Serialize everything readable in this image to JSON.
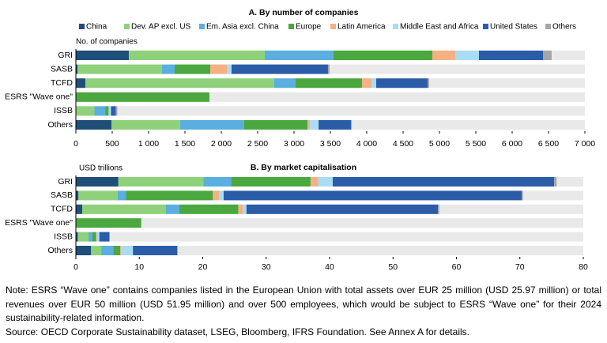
{
  "chart_data": [
    {
      "type": "bar",
      "orientation": "horizontal",
      "stacked": true,
      "title": "A. By number of companies",
      "y_label": "No. of companies",
      "categories": [
        "GRI",
        "SASB",
        "TCFD",
        "ESRS \"Wave one\"",
        "ISSB",
        "Others"
      ],
      "series": [
        {
          "name": "China",
          "color": "#1f4e79",
          "values": [
            728,
            22,
            130,
            0,
            5,
            489
          ]
        },
        {
          "name": "Dev. AP excl. US",
          "color": "#8fd17a",
          "values": [
            1870,
            1163,
            2598,
            0,
            250,
            946
          ]
        },
        {
          "name": "Em. Asia excl. China",
          "color": "#5aaee0",
          "values": [
            945,
            174,
            294,
            0,
            152,
            880
          ]
        },
        {
          "name": "Europe",
          "color": "#4aa83f",
          "values": [
            1359,
            489,
            913,
            1837,
            43,
            870
          ]
        },
        {
          "name": "Latin America",
          "color": "#f4b183",
          "values": [
            315,
            228,
            130,
            0,
            0,
            33
          ]
        },
        {
          "name": "Middle East and Africa",
          "color": "#aadcf5",
          "values": [
            326,
            65,
            65,
            0,
            33,
            120
          ]
        },
        {
          "name": "United States",
          "color": "#2b5ca8",
          "values": [
            881,
            1326,
            707,
            0,
            65,
            446
          ]
        },
        {
          "name": "Others",
          "color": "#a6a6a6",
          "values": [
            119,
            22,
            22,
            0,
            22,
            11
          ]
        }
      ],
      "xlim": [
        0,
        7000
      ],
      "xticks": [
        0,
        500,
        {
          "value": 1000,
          "label": "1 000"
        },
        {
          "value": 1500,
          "label": "1 500"
        },
        {
          "value": 2000,
          "label": "2 000"
        },
        {
          "value": 2500,
          "label": "2 500"
        },
        {
          "value": 3000,
          "label": "3 000"
        },
        {
          "value": 3500,
          "label": "3 500"
        },
        {
          "value": 4000,
          "label": "4 000"
        },
        {
          "value": 4500,
          "label": "4 500"
        },
        {
          "value": 5000,
          "label": "5 000"
        },
        {
          "value": 5500,
          "label": "5 500"
        },
        {
          "value": 6000,
          "label": "6 000"
        },
        {
          "value": 6500,
          "label": "6 500"
        },
        {
          "value": 7000,
          "label": "7 000"
        }
      ],
      "legend": "top"
    },
    {
      "type": "bar",
      "orientation": "horizontal",
      "stacked": true,
      "title": "B. By market capitalisation",
      "y_label": "USD trillions",
      "categories": [
        "GRI",
        "SASB",
        "TCFD",
        "ESRS \"Wave one\"",
        "ISSB",
        "Others"
      ],
      "series": [
        {
          "color": "#1f4e79",
          "values": [
            6.7,
            0.4,
            1.0,
            0,
            0.3,
            2.4
          ]
        },
        {
          "color": "#8fd17a",
          "values": [
            13.4,
            6.2,
            13.2,
            0,
            1.7,
            1.6
          ]
        },
        {
          "color": "#5aaee0",
          "values": [
            4.4,
            1.3,
            2.1,
            0,
            0.6,
            1.9
          ]
        },
        {
          "color": "#4aa83f",
          "values": [
            12.5,
            13.7,
            9.3,
            10.3,
            0.6,
            1.1
          ]
        },
        {
          "color": "#f4b183",
          "values": [
            1.2,
            1.0,
            0.7,
            0,
            0.1,
            0.1
          ]
        },
        {
          "color": "#aadcf5",
          "values": [
            2.3,
            0.7,
            0.6,
            0,
            0.4,
            1.9
          ]
        },
        {
          "color": "#2b5ca8",
          "values": [
            34.9,
            47.0,
            30.2,
            0,
            1.6,
            7.0
          ]
        },
        {
          "color": "#a6a6a6",
          "values": [
            0.4,
            0.2,
            0.2,
            0,
            0,
            0
          ]
        }
      ],
      "xlim": [
        0,
        80
      ],
      "xticks": [
        0,
        10,
        20,
        30,
        40,
        50,
        60,
        70,
        80
      ]
    }
  ],
  "note": "Note: ESRS “Wave one” contains companies listed in the European Union with total assets over EUR 25 million (USD 25.97 million) or total revenues over EUR 50 million (USD 51.95 million) and over 500 employees, which would be subject to ESRS “Wave one” for their 2024 sustainability-related information.",
  "source": "Source: OECD Corporate Sustainability dataset, LSEG, Bloomberg, IFRS Foundation. See Annex A for details."
}
